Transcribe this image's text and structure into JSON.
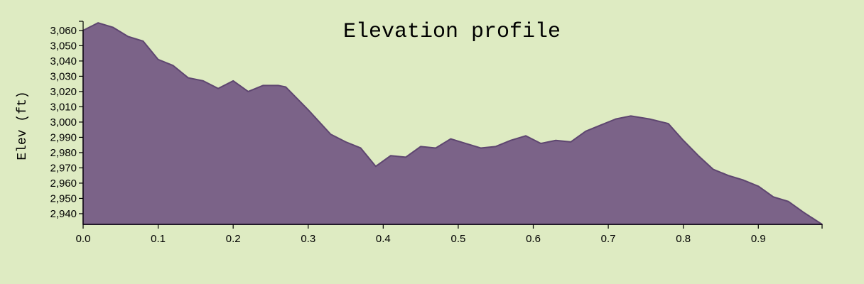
{
  "chart_data": {
    "type": "area",
    "title": "Elevation profile",
    "xlabel": "",
    "ylabel": "Elev (ft)",
    "xlim": [
      0,
      0.985
    ],
    "ylim": [
      2933,
      3066
    ],
    "x_ticks": [
      0.0,
      0.1,
      0.2,
      0.3,
      0.4,
      0.5,
      0.6,
      0.7,
      0.8,
      0.9
    ],
    "x_tick_labels": [
      "0.0",
      "0.1",
      "0.2",
      "0.3",
      "0.4",
      "0.5",
      "0.6",
      "0.7",
      "0.8",
      "0.9"
    ],
    "y_ticks": [
      2940,
      2950,
      2960,
      2970,
      2980,
      2990,
      3000,
      3010,
      3020,
      3030,
      3040,
      3050,
      3060
    ],
    "y_tick_labels": [
      "2,940",
      "2,950",
      "2,960",
      "2,970",
      "2,980",
      "2,990",
      "3,000",
      "3,010",
      "3,020",
      "3,030",
      "3,040",
      "3,050",
      "3,060"
    ],
    "grid": false,
    "colors": {
      "fill": "#7b6388",
      "stroke": "#5e4670",
      "background": "#deebc2"
    },
    "x": [
      0.0,
      0.02,
      0.04,
      0.06,
      0.08,
      0.1,
      0.12,
      0.14,
      0.16,
      0.18,
      0.2,
      0.22,
      0.24,
      0.26,
      0.27,
      0.3,
      0.33,
      0.35,
      0.37,
      0.39,
      0.41,
      0.43,
      0.45,
      0.47,
      0.49,
      0.51,
      0.53,
      0.55,
      0.57,
      0.59,
      0.61,
      0.63,
      0.65,
      0.67,
      0.69,
      0.71,
      0.73,
      0.755,
      0.78,
      0.8,
      0.82,
      0.84,
      0.86,
      0.88,
      0.9,
      0.92,
      0.94,
      0.96,
      0.985
    ],
    "y": [
      3060,
      3065,
      3062,
      3056,
      3053,
      3041,
      3037,
      3029,
      3027,
      3022,
      3027,
      3020,
      3024,
      3024,
      3023,
      3008,
      2992,
      2987,
      2983,
      2971,
      2978,
      2977,
      2984,
      2983,
      2989,
      2986,
      2983,
      2984,
      2988,
      2991,
      2986,
      2988,
      2987,
      2994,
      2998,
      3002,
      3004,
      3002,
      2999,
      2988,
      2978,
      2969,
      2965,
      2962,
      2958,
      2951,
      2948,
      2941,
      2933
    ]
  }
}
